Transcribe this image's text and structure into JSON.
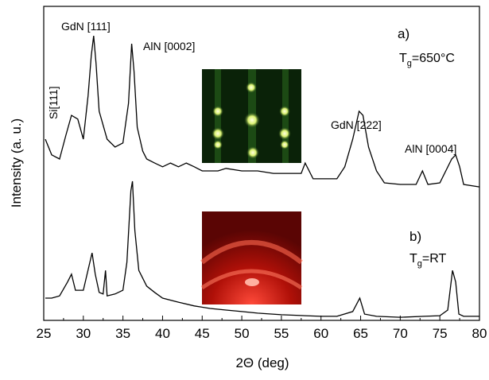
{
  "chart_data": {
    "type": "line",
    "xlabel": "2Θ (deg)",
    "ylabel": "Intensity (a. u.)",
    "xlim": [
      25,
      80
    ],
    "xticks": [
      25,
      30,
      35,
      40,
      45,
      50,
      55,
      60,
      65,
      70,
      75,
      80
    ],
    "ylim": [
      0,
      100
    ],
    "series": [
      {
        "color": "#000000",
        "x": [
          25.2,
          26,
          27,
          27.8,
          28.5,
          29.3,
          30,
          30.6,
          31,
          31.3,
          31.6,
          32,
          33,
          34,
          35,
          35.7,
          36.1,
          36.4,
          36.8,
          37.5,
          38,
          39,
          40,
          41,
          42,
          43,
          44,
          45,
          46,
          47,
          48,
          50,
          52,
          54,
          56,
          57.5,
          58,
          59,
          60,
          61,
          62,
          63,
          64,
          64.8,
          65.3,
          66,
          67,
          68,
          70,
          72,
          72.8,
          73.5,
          75,
          76.5,
          77,
          77.5,
          78,
          80
        ],
        "values": [
          57.7,
          52.7,
          51.4,
          59.0,
          65.3,
          64.1,
          57.7,
          71.6,
          84.3,
          90.6,
          81.8,
          66.6,
          57.7,
          55.2,
          56.5,
          69.1,
          88.1,
          79.2,
          61.5,
          53.9,
          51.4,
          50.1,
          48.9,
          50.1,
          48.9,
          50.1,
          48.9,
          47.6,
          47.6,
          47.6,
          48.4,
          47.6,
          47.6,
          46.8,
          46.8,
          46.8,
          50.1,
          45.1,
          45.1,
          45.1,
          45.1,
          48.9,
          57.7,
          66.6,
          65.3,
          55.2,
          47.6,
          43.8,
          43.3,
          43.3,
          47.6,
          43.3,
          43.8,
          51.4,
          52.7,
          48.9,
          43.3,
          42.5
        ]
      },
      {
        "color": "#000000",
        "x": [
          25.2,
          26,
          27,
          28,
          28.5,
          29,
          30,
          30.7,
          31.1,
          31.5,
          32,
          32.5,
          32.8,
          33,
          34,
          35,
          35.5,
          36,
          36.2,
          36.5,
          37,
          38,
          39,
          40,
          42,
          44,
          46,
          48,
          50,
          52,
          55,
          58,
          60,
          62,
          64,
          64.9,
          65.5,
          67,
          70,
          73,
          75,
          76,
          76.6,
          77,
          77.4,
          78,
          80
        ],
        "values": [
          7.1,
          7.1,
          7.8,
          12.2,
          14.7,
          9.6,
          9.6,
          17.2,
          21.5,
          14.7,
          8.9,
          8.4,
          15.9,
          7.8,
          8.4,
          9.6,
          18.5,
          41.3,
          44.3,
          28.6,
          15.9,
          10.9,
          8.9,
          7.1,
          5.8,
          4.6,
          3.8,
          3.3,
          2.8,
          2.3,
          1.8,
          1.5,
          1.3,
          1.3,
          2.8,
          7.1,
          2.0,
          1.3,
          1.0,
          1.3,
          1.5,
          3.3,
          15.9,
          12.2,
          2.0,
          1.3,
          1.3
        ]
      }
    ],
    "annotations": [
      "GdN [111]",
      "AlN [0002]",
      "Si[111]",
      "GdN [222]",
      "AlN [0004]",
      "a)",
      "b)"
    ],
    "temperature_a": {
      "symbol": "T",
      "subscript": "g",
      "value": "=650°C"
    },
    "temperature_b": {
      "symbol": "T",
      "subscript": "g",
      "value": "=RT"
    }
  }
}
